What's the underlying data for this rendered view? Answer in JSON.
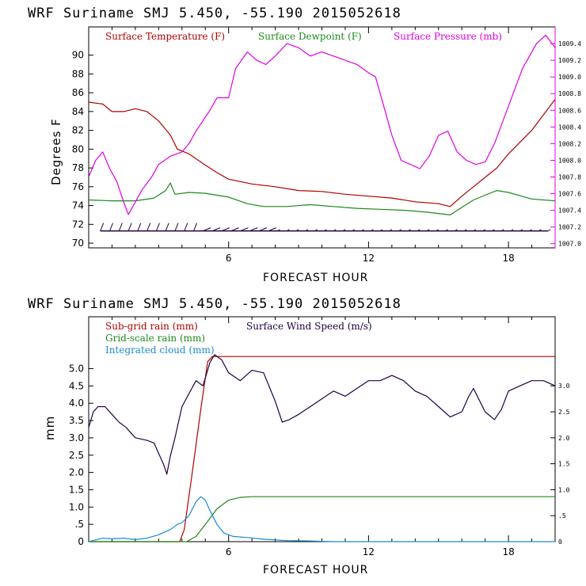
{
  "colors": {
    "temperature": "#b00000",
    "dewpoint": "#1a8a1a",
    "pressure": "#e000e0",
    "wind": "#200040",
    "subgrid": "#b00000",
    "gridscale": "#1a8a1a",
    "cloud": "#1a8ad0"
  },
  "chart_data": [
    {
      "type": "line",
      "title": "WRF   Suriname SMJ   5.450, -55.190  2015052618",
      "xlabel": "FORECAST HOUR",
      "ylabel": "Degrees F",
      "xlim": [
        0,
        20
      ],
      "ylim": [
        69.5,
        93
      ],
      "y2lim": [
        1006.95,
        1009.6
      ],
      "x_ticks": [
        "6",
        "12",
        "18"
      ],
      "y_ticks": [
        "70",
        "72",
        "74",
        "76",
        "78",
        "80",
        "82",
        "84",
        "86",
        "88",
        "90"
      ],
      "y2_ticks": [
        "1007.0",
        "1007.2",
        "1007.4",
        "1007.6",
        "1007.8",
        "1008.0",
        "1008.2",
        "1008.4",
        "1008.6",
        "1008.8",
        "1009.0",
        "1009.2",
        "1009.4"
      ],
      "legend": [
        "Surface Temperature (F)",
        "Surface Dewpoint (F)",
        "Surface Pressure (mb)"
      ],
      "series": [
        {
          "name": "Surface Temperature (F)",
          "axis": "left",
          "color_key": "temperature",
          "points": [
            [
              0,
              85
            ],
            [
              0.6,
              84.8
            ],
            [
              1,
              84
            ],
            [
              1.5,
              84
            ],
            [
              2,
              84.3
            ],
            [
              2.5,
              84
            ],
            [
              3,
              83
            ],
            [
              3.5,
              81.5
            ],
            [
              3.8,
              80
            ],
            [
              4.3,
              79.5
            ],
            [
              5,
              78.3
            ],
            [
              5.5,
              77.5
            ],
            [
              6,
              76.8
            ],
            [
              7,
              76.3
            ],
            [
              8,
              76
            ],
            [
              9,
              75.6
            ],
            [
              10,
              75.5
            ],
            [
              11,
              75.2
            ],
            [
              12,
              75
            ],
            [
              13,
              74.8
            ],
            [
              14,
              74.4
            ],
            [
              15,
              74.2
            ],
            [
              15.5,
              73.9
            ],
            [
              16,
              75
            ],
            [
              16.5,
              76
            ],
            [
              17,
              77
            ],
            [
              17.5,
              78
            ],
            [
              18,
              79.5
            ],
            [
              19,
              82
            ],
            [
              20,
              85.3
            ]
          ]
        },
        {
          "name": "Surface Dewpoint (F)",
          "axis": "left",
          "color_key": "dewpoint",
          "points": [
            [
              0,
              74.6
            ],
            [
              1,
              74.5
            ],
            [
              2,
              74.5
            ],
            [
              2.8,
              74.8
            ],
            [
              3.3,
              75.6
            ],
            [
              3.5,
              76.4
            ],
            [
              3.7,
              75.2
            ],
            [
              4.3,
              75.4
            ],
            [
              5,
              75.3
            ],
            [
              6,
              74.9
            ],
            [
              6.8,
              74.2
            ],
            [
              7.5,
              73.9
            ],
            [
              8.5,
              73.9
            ],
            [
              9.5,
              74.1
            ],
            [
              10.5,
              73.9
            ],
            [
              11.5,
              73.7
            ],
            [
              12.5,
              73.6
            ],
            [
              13.5,
              73.5
            ],
            [
              14.5,
              73.3
            ],
            [
              15.5,
              73
            ],
            [
              16,
              73.8
            ],
            [
              16.5,
              74.6
            ],
            [
              17,
              75.1
            ],
            [
              17.5,
              75.6
            ],
            [
              18,
              75.4
            ],
            [
              19,
              74.7
            ],
            [
              20,
              74.5
            ]
          ]
        },
        {
          "name": "Surface Pressure (mb)",
          "axis": "right",
          "color_key": "pressure",
          "points": [
            [
              0,
              1007.8
            ],
            [
              0.3,
              1008
            ],
            [
              0.6,
              1008.1
            ],
            [
              0.9,
              1007.9
            ],
            [
              1.2,
              1007.75
            ],
            [
              1.5,
              1007.5
            ],
            [
              1.7,
              1007.35
            ],
            [
              2,
              1007.5
            ],
            [
              2.3,
              1007.65
            ],
            [
              2.7,
              1007.8
            ],
            [
              3,
              1007.95
            ],
            [
              3.5,
              1008.05
            ],
            [
              4,
              1008.1
            ],
            [
              4.3,
              1008.2
            ],
            [
              4.6,
              1008.35
            ],
            [
              5.2,
              1008.6
            ],
            [
              5.5,
              1008.75
            ],
            [
              6,
              1008.75
            ],
            [
              6.3,
              1009.1
            ],
            [
              6.8,
              1009.3
            ],
            [
              7.2,
              1009.2
            ],
            [
              7.6,
              1009.15
            ],
            [
              8,
              1009.25
            ],
            [
              8.5,
              1009.4
            ],
            [
              9,
              1009.35
            ],
            [
              9.5,
              1009.25
            ],
            [
              10,
              1009.3
            ],
            [
              10.5,
              1009.25
            ],
            [
              11,
              1009.2
            ],
            [
              11.5,
              1009.15
            ],
            [
              12,
              1009.05
            ],
            [
              12.3,
              1009
            ],
            [
              12.6,
              1008.7
            ],
            [
              13,
              1008.3
            ],
            [
              13.4,
              1008
            ],
            [
              13.8,
              1007.95
            ],
            [
              14.2,
              1007.9
            ],
            [
              14.6,
              1008.05
            ],
            [
              15,
              1008.3
            ],
            [
              15.4,
              1008.35
            ],
            [
              15.8,
              1008.1
            ],
            [
              16.2,
              1008
            ],
            [
              16.6,
              1007.95
            ],
            [
              17,
              1007.98
            ],
            [
              17.4,
              1008.2
            ],
            [
              17.8,
              1008.5
            ],
            [
              18.2,
              1008.8
            ],
            [
              18.6,
              1009.1
            ],
            [
              19.2,
              1009.4
            ],
            [
              19.6,
              1009.5
            ],
            [
              20,
              1009.35
            ]
          ]
        }
      ],
      "wind_barbs": {
        "hours": [
          0.5,
          0.9,
          1.3,
          1.7,
          2.1,
          2.5,
          2.9,
          3.3,
          3.7,
          4.1,
          4.5,
          4.9,
          5.3,
          5.7,
          6.1,
          6.5,
          6.9,
          7.3,
          7.7,
          8.1,
          8.5,
          8.9,
          9.3,
          9.7,
          10.1,
          10.5,
          10.9,
          11.3,
          11.7,
          12.1,
          12.5,
          12.9,
          13.3,
          13.7,
          14.1,
          14.5,
          14.9,
          15.3,
          15.7,
          16.1,
          16.5,
          16.9,
          17.3,
          17.7,
          18.1,
          18.5,
          18.9,
          19.3,
          19.7
        ],
        "level": 71.3
      }
    },
    {
      "type": "line",
      "title": "WRF   Suriname SMJ   5.450, -55.190  2015052618",
      "xlabel": "FORECAST HOUR",
      "ylabel": "mm",
      "xlim": [
        0,
        20
      ],
      "ylim": [
        0,
        6.5
      ],
      "y2lim": [
        0,
        4.33
      ],
      "x_ticks": [
        "6",
        "12",
        "18"
      ],
      "y_ticks": [
        "0",
        ".5",
        "1.0",
        "1.5",
        "2.0",
        "2.5",
        "3.0",
        "3.5",
        "4.0",
        "4.5",
        "5.0"
      ],
      "y2_ticks": [
        "0",
        ".5",
        "1.0",
        "1.5",
        "2.0",
        "2.5",
        "3.0"
      ],
      "legend": [
        "Sub-grid rain (mm)",
        "Grid-scale rain (mm)",
        "Integrated cloud (mm)",
        "Surface Wind Speed (m/s)"
      ],
      "series": [
        {
          "name": "Sub-grid rain (mm)",
          "axis": "left",
          "color_key": "subgrid",
          "points": [
            [
              0,
              0
            ],
            [
              3.9,
              0
            ],
            [
              4.1,
              0.35
            ],
            [
              4.4,
              1.8
            ],
            [
              4.8,
              3.8
            ],
            [
              5.1,
              5.2
            ],
            [
              5.3,
              5.35
            ],
            [
              20,
              5.35
            ]
          ]
        },
        {
          "name": "Grid-scale rain (mm)",
          "axis": "left",
          "color_key": "gridscale",
          "points": [
            [
              0,
              0
            ],
            [
              4.2,
              0
            ],
            [
              4.6,
              0.15
            ],
            [
              5,
              0.5
            ],
            [
              5.5,
              0.95
            ],
            [
              6,
              1.2
            ],
            [
              6.5,
              1.28
            ],
            [
              7,
              1.3
            ],
            [
              20,
              1.3
            ]
          ]
        },
        {
          "name": "Integrated cloud (mm)",
          "axis": "left",
          "color_key": "cloud",
          "points": [
            [
              0,
              0
            ],
            [
              0.3,
              0.05
            ],
            [
              0.6,
              0.1
            ],
            [
              1,
              0.08
            ],
            [
              1.5,
              0.1
            ],
            [
              2,
              0.06
            ],
            [
              2.5,
              0.1
            ],
            [
              3,
              0.2
            ],
            [
              3.5,
              0.35
            ],
            [
              3.8,
              0.5
            ],
            [
              4,
              0.55
            ],
            [
              4.3,
              0.75
            ],
            [
              4.6,
              1.15
            ],
            [
              4.8,
              1.3
            ],
            [
              5,
              1.2
            ],
            [
              5.2,
              0.9
            ],
            [
              5.5,
              0.5
            ],
            [
              5.8,
              0.25
            ],
            [
              6.2,
              0.15
            ],
            [
              6.8,
              0.12
            ],
            [
              7.5,
              0.07
            ],
            [
              8.5,
              0.03
            ],
            [
              9.5,
              0.02
            ],
            [
              10.5,
              0
            ],
            [
              20,
              0
            ]
          ]
        },
        {
          "name": "Surface Wind Speed (m/s)",
          "axis": "right",
          "color_key": "wind",
          "points": [
            [
              0,
              2.2
            ],
            [
              0.2,
              2.5
            ],
            [
              0.4,
              2.6
            ],
            [
              0.7,
              2.6
            ],
            [
              1,
              2.45
            ],
            [
              1.3,
              2.3
            ],
            [
              1.6,
              2.2
            ],
            [
              2,
              2
            ],
            [
              2.5,
              1.95
            ],
            [
              2.8,
              1.9
            ],
            [
              3,
              1.7
            ],
            [
              3.2,
              1.5
            ],
            [
              3.35,
              1.3
            ],
            [
              3.5,
              1.65
            ],
            [
              3.7,
              2
            ],
            [
              4,
              2.6
            ],
            [
              4.3,
              2.85
            ],
            [
              4.6,
              3.1
            ],
            [
              4.9,
              3
            ],
            [
              5.2,
              3.45
            ],
            [
              5.4,
              3.6
            ],
            [
              5.7,
              3.5
            ],
            [
              6,
              3.25
            ],
            [
              6.5,
              3.1
            ],
            [
              7,
              3.3
            ],
            [
              7.5,
              3.25
            ],
            [
              8,
              2.7
            ],
            [
              8.3,
              2.3
            ],
            [
              8.6,
              2.35
            ],
            [
              9,
              2.45
            ],
            [
              9.5,
              2.6
            ],
            [
              10,
              2.75
            ],
            [
              10.5,
              2.9
            ],
            [
              11,
              2.8
            ],
            [
              11.5,
              2.95
            ],
            [
              12,
              3.1
            ],
            [
              12.5,
              3.1
            ],
            [
              13,
              3.2
            ],
            [
              13.5,
              3.1
            ],
            [
              14,
              2.9
            ],
            [
              14.5,
              2.8
            ],
            [
              15,
              2.6
            ],
            [
              15.5,
              2.4
            ],
            [
              16,
              2.5
            ],
            [
              16.3,
              2.8
            ],
            [
              16.5,
              2.95
            ],
            [
              17,
              2.5
            ],
            [
              17.4,
              2.35
            ],
            [
              17.7,
              2.55
            ],
            [
              18,
              2.9
            ],
            [
              18.5,
              3
            ],
            [
              19,
              3.1
            ],
            [
              19.5,
              3.1
            ],
            [
              20,
              3
            ]
          ]
        }
      ]
    }
  ]
}
